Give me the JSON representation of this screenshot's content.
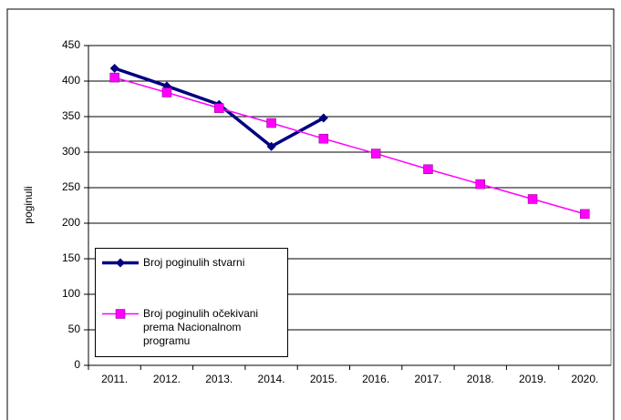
{
  "chart_data": {
    "type": "line",
    "y_label": "poginuli",
    "categories": [
      "2011.",
      "2012.",
      "2013.",
      "2014.",
      "2015.",
      "2016.",
      "2017.",
      "2018.",
      "2019.",
      "2020."
    ],
    "series": [
      {
        "name": "Broj poginulih stvarni",
        "color": "#000080",
        "marker": "diamond",
        "values": [
          418,
          393,
          367,
          308,
          348,
          null,
          null,
          null,
          null,
          null
        ]
      },
      {
        "name": "Broj poginulih očekivani prema Nacionalnom programu",
        "color": "#ff00ff",
        "marker": "square",
        "values": [
          405,
          384,
          362,
          341,
          319,
          298,
          276,
          255,
          234,
          213
        ]
      }
    ],
    "ylim": [
      0,
      450
    ],
    "yticks": [
      0,
      50,
      100,
      150,
      200,
      250,
      300,
      350,
      400,
      450
    ],
    "grid": true,
    "legend": "lower left"
  }
}
